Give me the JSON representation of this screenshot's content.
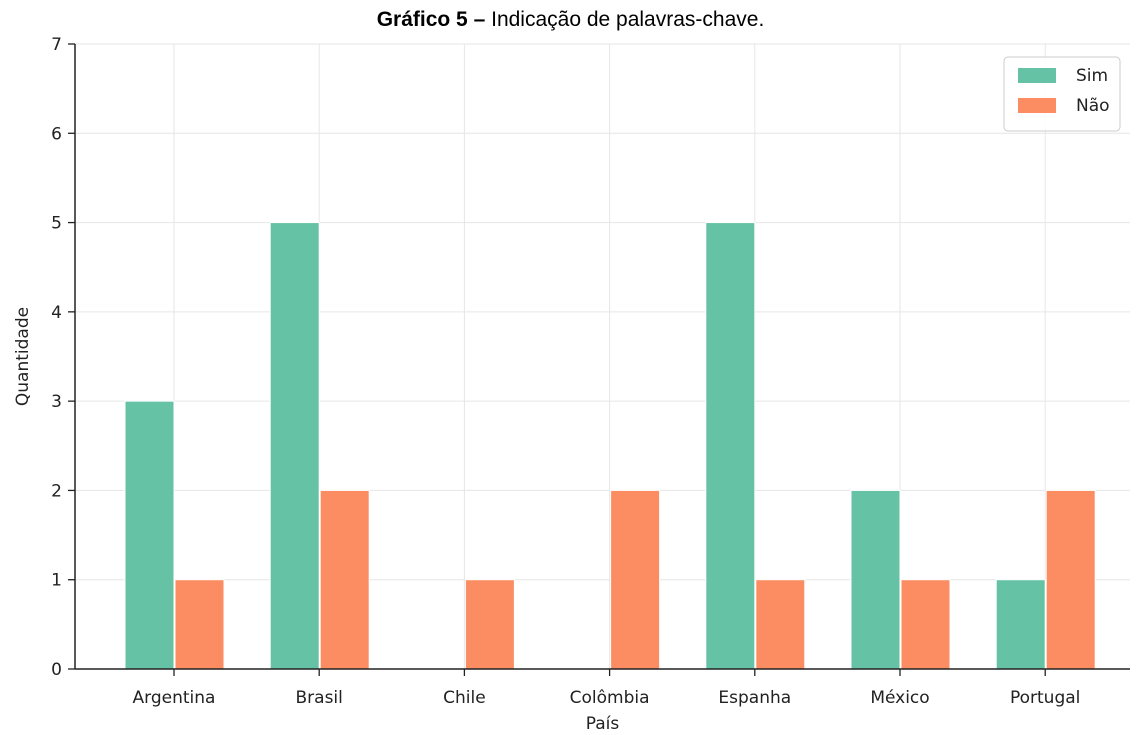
{
  "chart_data": {
    "type": "bar",
    "title_bold": "Gráfico 5 –",
    "title": "Indicação de palavras-chave.",
    "xlabel": "País",
    "ylabel": "Quantidade",
    "categories": [
      "Argentina",
      "Brasil",
      "Chile",
      "Colômbia",
      "Espanha",
      "México",
      "Portugal"
    ],
    "series": [
      {
        "name": "Sim",
        "color": "#66c2a5",
        "values": [
          3,
          5,
          0,
          0,
          5,
          2,
          1
        ]
      },
      {
        "name": "Não",
        "color": "#fc8d62",
        "values": [
          1,
          2,
          1,
          2,
          1,
          1,
          2
        ]
      }
    ],
    "ylim": [
      0,
      7
    ],
    "yticks": [
      0,
      1,
      2,
      3,
      4,
      5,
      6,
      7
    ],
    "grid": true,
    "legend_position": "top-right"
  }
}
